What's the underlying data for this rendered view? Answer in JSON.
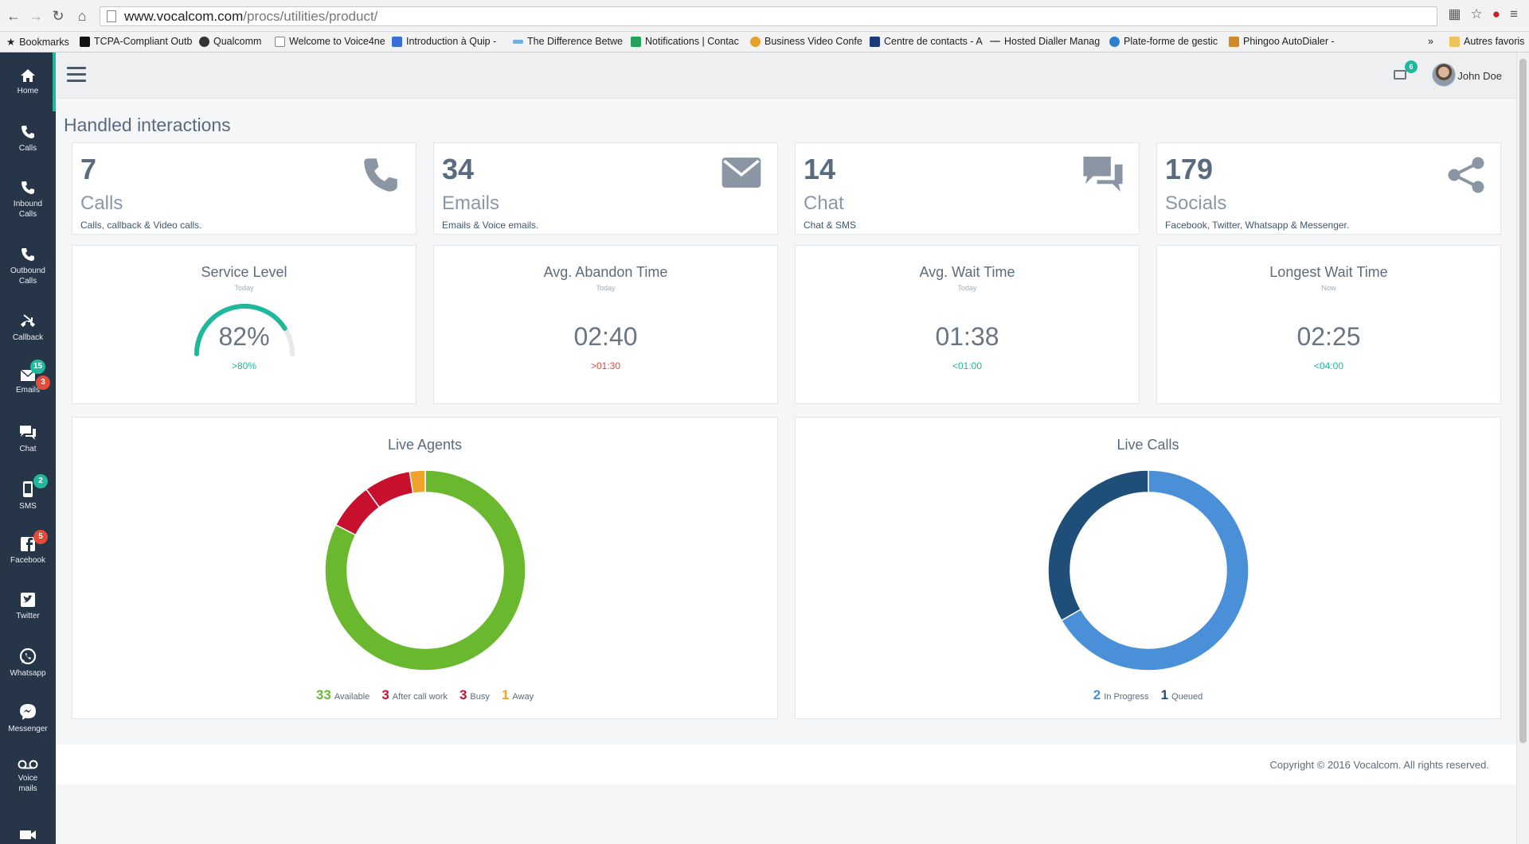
{
  "browser": {
    "url_host": "www.vocalcom.com",
    "url_path": "/procs/utilities/product/",
    "bookmarks": [
      {
        "label": "Bookmarks",
        "color": "#555555"
      },
      {
        "label": "TCPA-Compliant Outb",
        "color": "#111111"
      },
      {
        "label": "Qualcomm",
        "color": "#333333"
      },
      {
        "label": "Welcome to Voice4ne",
        "color": "#999999"
      },
      {
        "label": "Introduction à Quip -",
        "color": "#3b6fd6"
      },
      {
        "label": "The Difference Betwe",
        "color": "#6fb0e0"
      },
      {
        "label": "Notifications | Contac",
        "color": "#23a35a"
      },
      {
        "label": "Business Video Confe",
        "color": "#e4a02a"
      },
      {
        "label": "Centre de contacts - A",
        "color": "#1a3a7a"
      },
      {
        "label": "Hosted Dialler Manag",
        "color": "#777777"
      },
      {
        "label": "Plate-forme de gestic",
        "color": "#2d7fd0"
      },
      {
        "label": "Phingoo AutoDialer -",
        "color": "#d08a2a"
      }
    ],
    "other_bookmarks": "Autres favoris"
  },
  "sidebar": {
    "items": [
      {
        "label": "Home",
        "badge_green": "",
        "badge_red": ""
      },
      {
        "label": "Calls",
        "badge_green": "",
        "badge_red": ""
      },
      {
        "label": "Inbound Calls",
        "badge_green": "",
        "badge_red": ""
      },
      {
        "label": "Outbound Calls",
        "badge_green": "",
        "badge_red": ""
      },
      {
        "label": "Callback",
        "badge_green": "",
        "badge_red": ""
      },
      {
        "label": "Emails",
        "badge_green": "15",
        "badge_red": "3"
      },
      {
        "label": "Chat",
        "badge_green": "",
        "badge_red": ""
      },
      {
        "label": "SMS",
        "badge_green": "2",
        "badge_red": ""
      },
      {
        "label": "Facebook",
        "badge_green": "",
        "badge_red": "5"
      },
      {
        "label": "Twitter",
        "badge_green": "",
        "badge_red": ""
      },
      {
        "label": "Whatsapp",
        "badge_green": "",
        "badge_red": ""
      },
      {
        "label": "Messenger",
        "badge_green": "",
        "badge_red": ""
      },
      {
        "label": "Voice mails",
        "badge_green": "",
        "badge_red": ""
      }
    ]
  },
  "topbar": {
    "mail_count": "6",
    "user_name": "John Doe"
  },
  "page": {
    "title": "Handled interactions"
  },
  "stats": [
    {
      "number": "7",
      "label": "Calls",
      "sub": "Calls, callback & Video calls.",
      "icon": "phone-icon"
    },
    {
      "number": "34",
      "label": "Emails",
      "sub": "Emails & Voice emails.",
      "icon": "envelope-icon"
    },
    {
      "number": "14",
      "label": "Chat",
      "sub": "Chat & SMS",
      "icon": "chat-bubbles-icon"
    },
    {
      "number": "179",
      "label": "Socials",
      "sub": "Facebook, Twitter, Whatsapp & Messenger.",
      "icon": "share-icon"
    }
  ],
  "kpis": [
    {
      "title": "Service Level",
      "sub": "Today",
      "value": "82%",
      "target": ">80%",
      "target_color": "green",
      "gauge_fraction": 0.82
    },
    {
      "title": "Avg. Abandon Time",
      "sub": "Today",
      "value": "02:40",
      "target": ">01:30",
      "target_color": "red"
    },
    {
      "title": "Avg. Wait Time",
      "sub": "Today",
      "value": "01:38",
      "target": "<01:00",
      "target_color": "green"
    },
    {
      "title": "Longest Wait Time",
      "sub": "Now",
      "value": "02:25",
      "target": "<04:00",
      "target_color": "green"
    }
  ],
  "colors": {
    "available": "#6ab82e",
    "after_call_work": "#c8102e",
    "busy": "#c8102e",
    "away": "#f0a32a",
    "in_progress": "#4a90d9",
    "queued": "#1f4e79",
    "accent": "#1fb89a"
  },
  "chart_data": [
    {
      "type": "pie",
      "title": "Live Agents",
      "categories": [
        "Available",
        "After call work",
        "Busy",
        "Away"
      ],
      "values": [
        33,
        3,
        3,
        1
      ]
    },
    {
      "type": "pie",
      "title": "Live Calls",
      "categories": [
        "In Progress",
        "Queued"
      ],
      "values": [
        2,
        1
      ]
    }
  ],
  "footer": {
    "copyright": "Copyright © 2016 Vocalcom. All rights reserved."
  }
}
